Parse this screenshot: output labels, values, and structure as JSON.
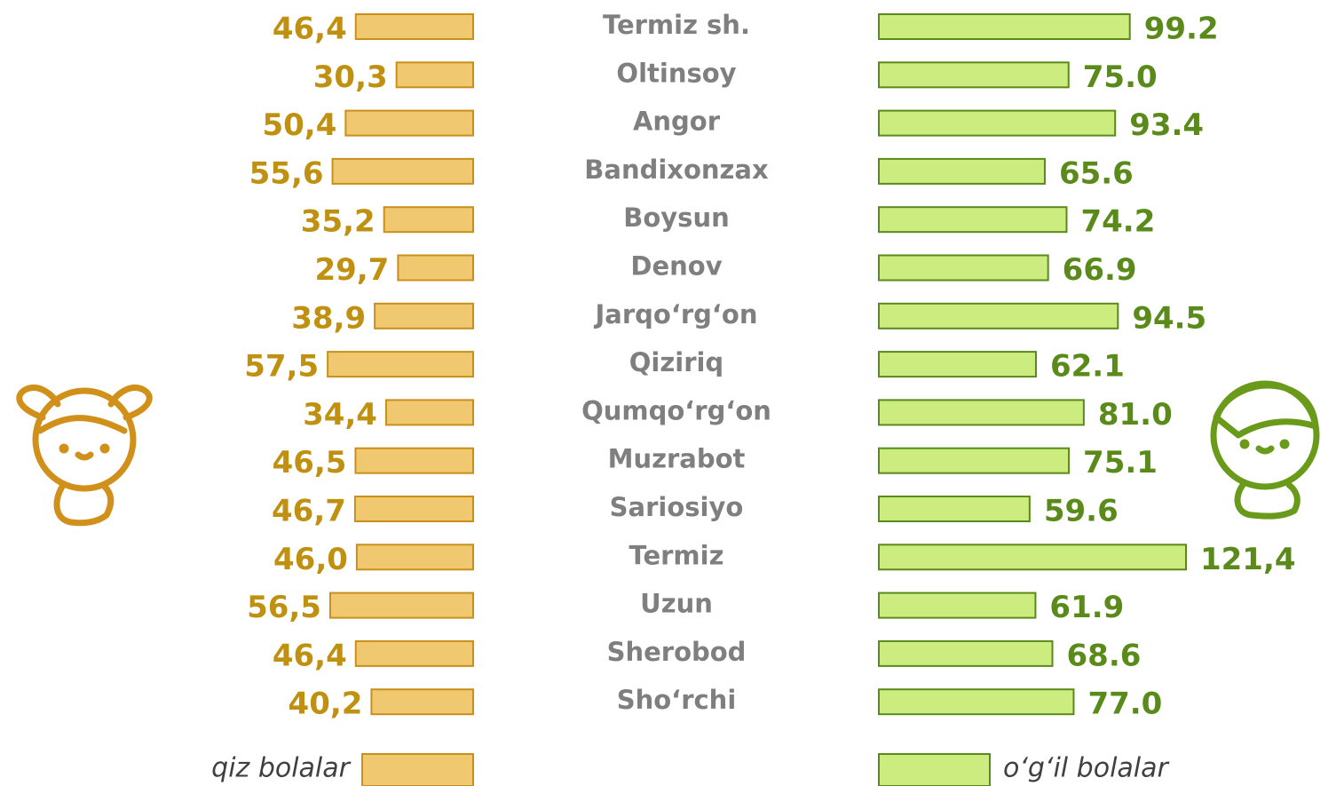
{
  "chart_data": {
    "type": "bar",
    "categories": [
      "Termiz sh.",
      "Oltinsoy",
      "Angor",
      "Bandixonzax",
      "Boysun",
      "Denov",
      "Jarqo‘rg‘on",
      "Qiziriq",
      "Qumqo‘rg‘on",
      "Muzrabot",
      "Sariosiyo",
      "Termiz",
      "Uzun",
      "Sherobod",
      "Sho‘rchi"
    ],
    "series": [
      {
        "name": "qiz bolalar",
        "color": "#f0c870",
        "values": [
          46.4,
          30.3,
          50.4,
          55.6,
          35.2,
          29.7,
          38.9,
          57.5,
          34.4,
          46.5,
          46.7,
          46.0,
          56.5,
          46.4,
          40.2
        ],
        "value_labels": [
          "46,4",
          "30,3",
          "50,4",
          "55,6",
          "35,2",
          "29,7",
          "38,9",
          "57,5",
          "34,4",
          "46,5",
          "46,7",
          "46,0",
          "56,5",
          "46,4",
          "40,2"
        ]
      },
      {
        "name": "o‘g‘il bolalar",
        "color": "#cdec80",
        "values": [
          99.2,
          75.0,
          93.4,
          65.6,
          74.2,
          66.9,
          94.5,
          62.1,
          81.0,
          75.1,
          59.6,
          121.4,
          61.9,
          68.6,
          77.0
        ],
        "value_labels": [
          "99.2",
          "75.0",
          "93.4",
          "65.6",
          "74.2",
          "66.9",
          "94.5",
          "62.1",
          "81.0",
          "75.1",
          "59.6",
          "121,4",
          "61.9",
          "68.6",
          "77.0"
        ]
      }
    ]
  }
}
